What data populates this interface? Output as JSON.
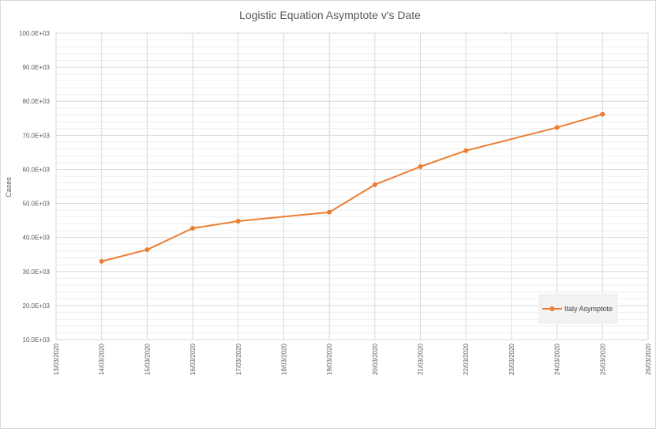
{
  "chart_data": {
    "type": "line",
    "title": "Logistic Equation Asymptote v's Date",
    "xlabel": "",
    "ylabel": "Cases",
    "x_tick_labels": [
      "13/03/2020",
      "14/03/2020",
      "15/03/2020",
      "16/03/2020",
      "17/03/2020",
      "18/03/2020",
      "19/03/2020",
      "20/03/2020",
      "21/03/2020",
      "22/03/2020",
      "23/03/2020",
      "24/03/2020",
      "25/03/2020",
      "26/03/2020"
    ],
    "y_tick_labels": [
      "10.0E+03",
      "20.0E+03",
      "30.0E+03",
      "40.0E+03",
      "50.0E+03",
      "60.0E+03",
      "70.0E+03",
      "80.0E+03",
      "90.0E+03",
      "100.0E+03"
    ],
    "xlim": [
      "13/03/2020",
      "26/03/2020"
    ],
    "ylim": [
      10000,
      100000
    ],
    "y_major_step": 10000,
    "y_minor_step": 2000,
    "grid": true,
    "legend_position": "bottom-right",
    "series": [
      {
        "name": "Italy Asymptote",
        "color": "#ed7d31",
        "x": [
          "14/03/2020",
          "15/03/2020",
          "16/03/2020",
          "17/03/2020",
          "19/03/2020",
          "20/03/2020",
          "21/03/2020",
          "22/03/2020",
          "24/03/2020",
          "25/03/2020"
        ],
        "values": [
          33000,
          36400,
          42700,
          44800,
          47400,
          55500,
          60800,
          65500,
          72300,
          76200
        ]
      }
    ]
  }
}
